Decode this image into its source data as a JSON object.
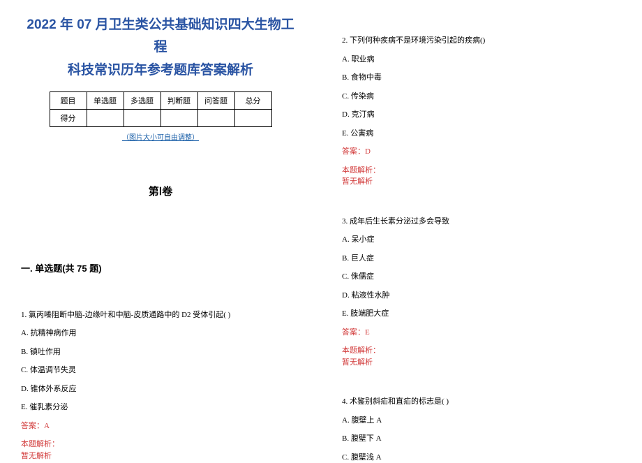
{
  "title_line1": "2022 年 07 月卫生类公共基础知识四大生物工程",
  "title_line2": "科技常识历年参考题库答案解析",
  "score_table": {
    "headers": [
      "题目",
      "单选题",
      "多选题",
      "判断题",
      "问答题",
      "总分"
    ],
    "row_label": "得分"
  },
  "resize_note": "（图片大小可自由调整）",
  "juan_heading": "第Ⅰ卷",
  "section_heading": "一. 单选题(共 75 题)",
  "questions": {
    "q1": {
      "stem": "1. 氯丙嗪阻断中脑-边缘叶和中脑-皮质通路中的 D2 受体引起(  )",
      "opts": [
        "A. 抗精神病作用",
        "B. 镇吐作用",
        "C. 体温调节失灵",
        "D. 锥体外系反应",
        "E. 催乳素分泌"
      ],
      "ans": "答案：A",
      "analysis_label": "本题解析：",
      "analysis_body": "暂无解析"
    },
    "q2": {
      "stem": "2. 下列何种疾病不是环境污染引起的疾病()",
      "opts": [
        "A. 职业病",
        "B. 食物中毒",
        "C. 传染病",
        "D. 克汀病",
        "E. 公害病"
      ],
      "ans": "答案：D",
      "analysis_label": "本题解析：",
      "analysis_body": "暂无解析"
    },
    "q3": {
      "stem": "3. 成年后生长素分泌过多会导致",
      "opts": [
        "A. 呆小症",
        "B. 巨人症",
        "C. 侏儒症",
        "D. 粘液性水肿",
        "E. 肢端肥大症"
      ],
      "ans": "答案：E",
      "analysis_label": "本题解析：",
      "analysis_body": "暂无解析"
    },
    "q4": {
      "stem": "4. 术鉴别斜疝和直疝的标志是( )",
      "opts": [
        "A. 腹壁上 A",
        "B. 腹壁下 A",
        "C. 腹壁浅 A"
      ]
    }
  },
  "colors": {
    "title": "#2a54a3",
    "link": "#1a5fa8",
    "answer": "#d23b3b",
    "text": "#000000",
    "border": "#000000"
  }
}
